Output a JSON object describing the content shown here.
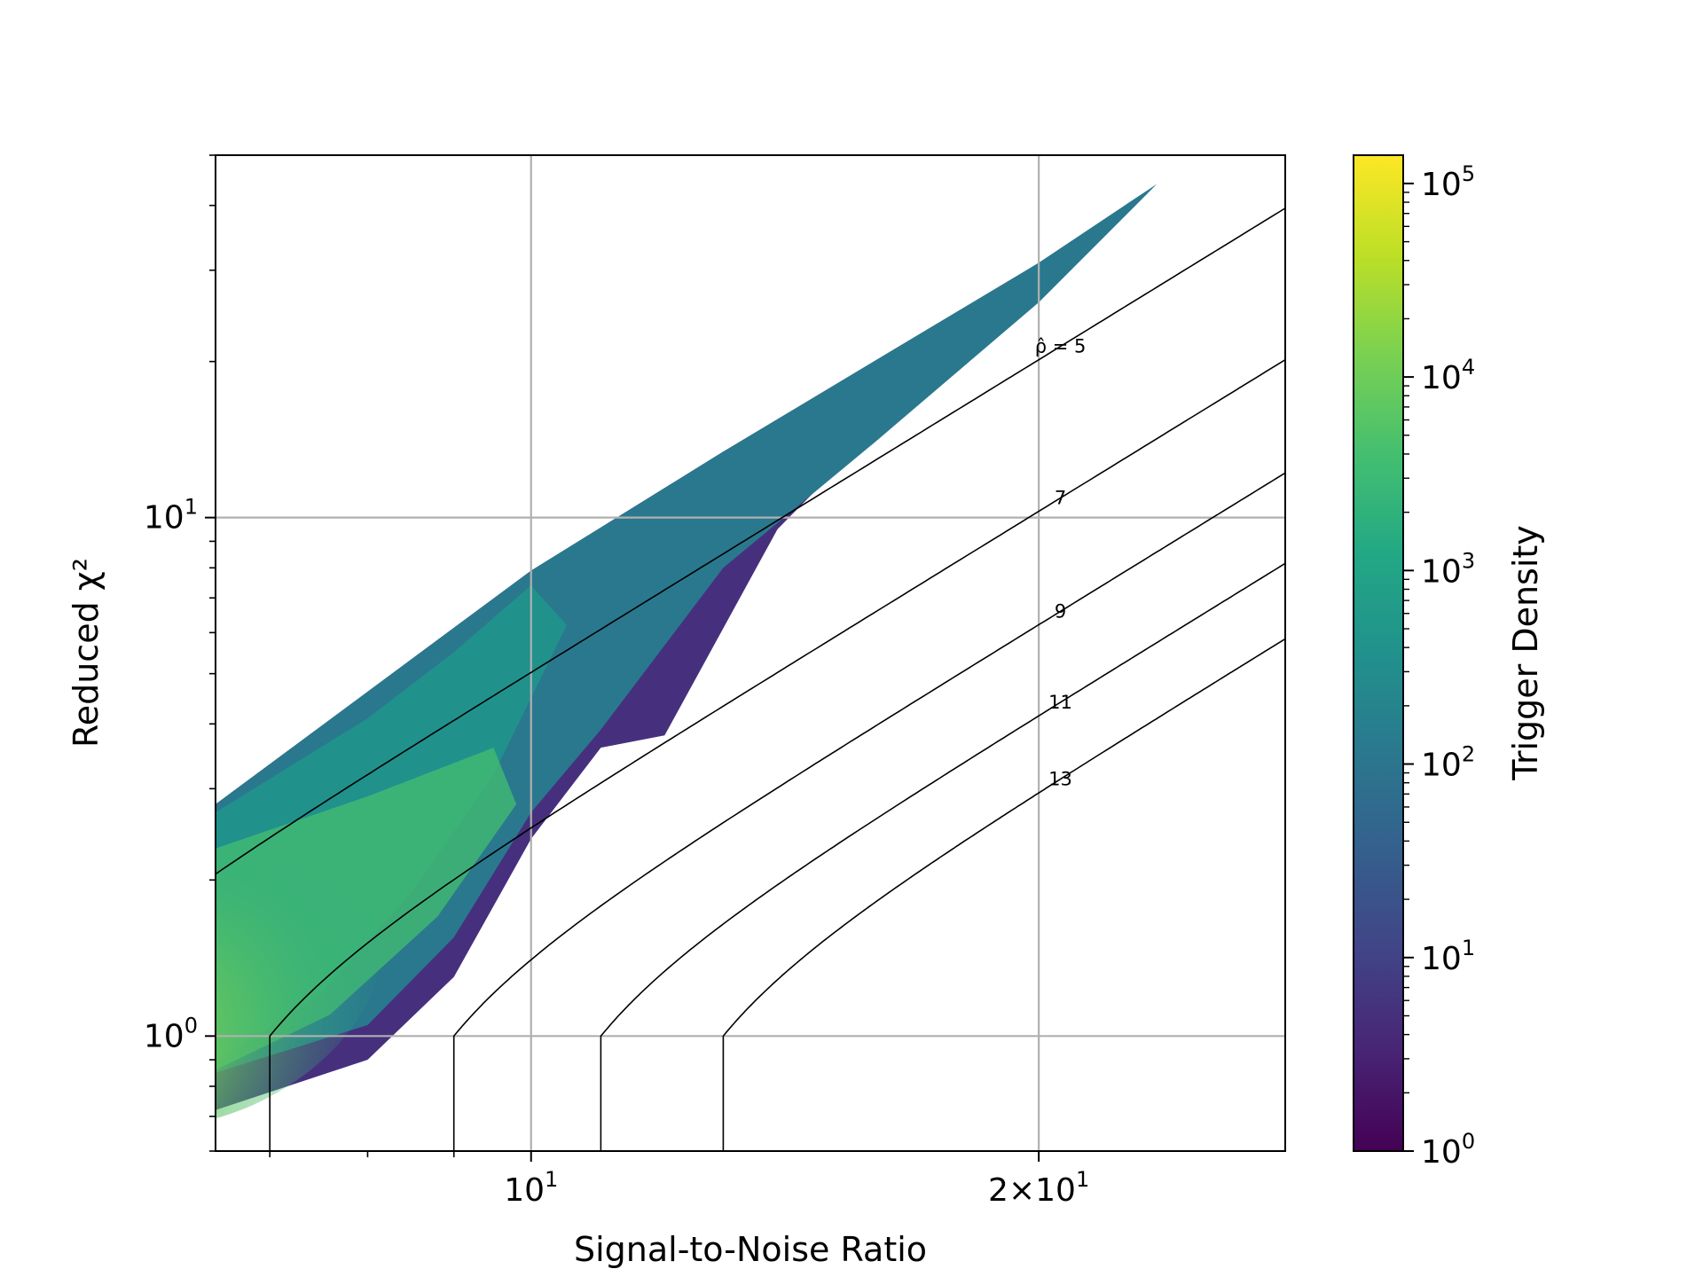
{
  "chart_data": {
    "type": "heatmap",
    "title": "",
    "xlabel": "Signal-to-Noise Ratio",
    "ylabel": "Reduced χ²",
    "xscale": "log",
    "yscale": "log",
    "xlim": [
      6.5,
      28
    ],
    "ylim": [
      0.6,
      50
    ],
    "grid": true,
    "x_ticks": [
      {
        "value": 10,
        "base": "10",
        "exp": "1",
        "label": "10^1"
      },
      {
        "value": 20,
        "base": "2×10",
        "exp": "1",
        "label": "2×10^1"
      }
    ],
    "y_ticks": [
      {
        "value": 1,
        "base": "10",
        "exp": "0",
        "label": "10^0"
      },
      {
        "value": 10,
        "base": "10",
        "exp": "1",
        "label": "10^1"
      }
    ],
    "colorbar": {
      "label": "Trigger Density",
      "scale": "log",
      "range": [
        1,
        140000
      ],
      "colormap": "viridis",
      "ticks": [
        {
          "value": 1,
          "base": "10",
          "exp": "0"
        },
        {
          "value": 10,
          "base": "10",
          "exp": "1"
        },
        {
          "value": 100,
          "base": "10",
          "exp": "2"
        },
        {
          "value": 1000,
          "base": "10",
          "exp": "3"
        },
        {
          "value": 10000,
          "base": "10",
          "exp": "4"
        },
        {
          "value": 100000,
          "base": "10",
          "exp": "5"
        }
      ]
    },
    "contours": [
      {
        "level": 5,
        "label": "ρ̂ = 5"
      },
      {
        "level": 7,
        "label": "7"
      },
      {
        "level": 9,
        "label": "9"
      },
      {
        "level": 11,
        "label": "11"
      },
      {
        "level": 13,
        "label": "13"
      }
    ],
    "density_region": {
      "upper_edge": [
        [
          6.5,
          2.8
        ],
        [
          10,
          7.9
        ],
        [
          13,
          13.4
        ],
        [
          17,
          22.6
        ],
        [
          20,
          31
        ],
        [
          23.5,
          44
        ]
      ],
      "lower_edge": [
        [
          6.5,
          0.72
        ],
        [
          8,
          0.9
        ],
        [
          9,
          1.3
        ],
        [
          10,
          2.4
        ],
        [
          11,
          3.6
        ],
        [
          12,
          3.8
        ],
        [
          14,
          9.5
        ],
        [
          17,
          18
        ],
        [
          20,
          28
        ],
        [
          23,
          42
        ]
      ],
      "peak": [
        [
          6.5,
          1.2
        ],
        [
          0.0
        ]
      ]
    }
  }
}
